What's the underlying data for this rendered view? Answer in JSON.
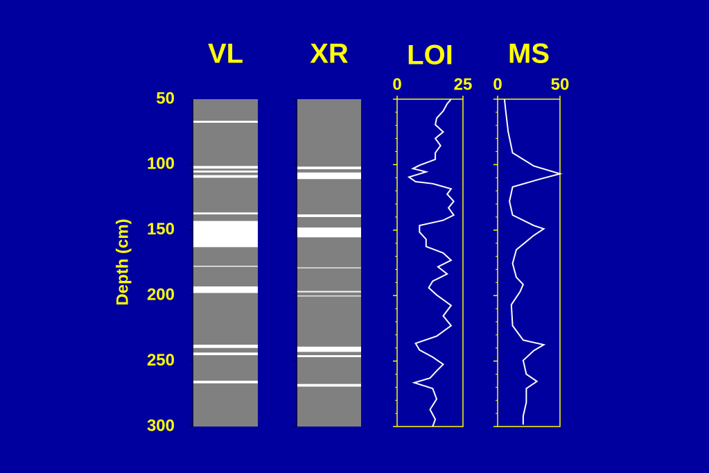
{
  "chart_data": [
    {
      "type": "strip",
      "title": "VL",
      "ylabel": "Depth (cm)",
      "ylim": [
        50,
        300
      ],
      "yticks": [
        50,
        100,
        150,
        200,
        250,
        300
      ],
      "yminorticks": [
        60,
        70,
        80,
        90,
        110,
        120,
        130,
        140,
        160,
        170,
        180,
        190,
        210,
        220,
        230,
        240,
        260,
        270,
        280,
        290
      ],
      "color": "#808080",
      "band_color": "#ffffff",
      "intervals": [
        [
          66.5,
          68
        ],
        [
          101,
          103
        ],
        [
          104.5,
          106
        ],
        [
          108,
          110
        ],
        [
          136.5,
          138
        ],
        [
          143,
          163
        ],
        [
          177.3,
          178
        ],
        [
          193,
          198
        ],
        [
          237.5,
          240
        ],
        [
          243.5,
          245.5
        ],
        [
          265,
          267
        ]
      ]
    },
    {
      "type": "strip",
      "title": "XR",
      "ylim": [
        50,
        300
      ],
      "color": "#808080",
      "band_color": "#ffffff",
      "intervals": [
        [
          101.5,
          103.5
        ],
        [
          106,
          111
        ],
        [
          138,
          140
        ],
        [
          148,
          155.5
        ],
        [
          178.5,
          179
        ],
        [
          196.5,
          197.5
        ],
        [
          200,
          200.5
        ],
        [
          239,
          243
        ],
        [
          245.5,
          247
        ],
        [
          267.5,
          269.5
        ]
      ]
    },
    {
      "type": "line",
      "title": "LOI",
      "xlim": [
        0,
        25
      ],
      "xticks": [
        0,
        25
      ],
      "ylim": [
        50,
        300
      ],
      "color": "#ffffff",
      "depth": [
        50,
        53.5,
        59,
        64.5,
        69.5,
        75,
        80,
        85.5,
        91,
        96,
        100.5,
        103,
        105.5,
        109.5,
        113,
        114.5,
        118.5,
        122.5,
        128,
        133,
        138.5,
        142.5,
        146.5,
        151.5,
        157,
        162.5,
        167.5,
        173,
        178,
        183.5,
        189,
        194,
        199.5,
        207.5,
        215.5,
        223,
        231,
        236.5,
        241.5,
        247,
        252.5,
        257.5,
        263,
        266.5,
        271,
        279,
        287,
        294.5,
        300
      ],
      "values": [
        20.5,
        19,
        17.5,
        15,
        14.5,
        17.5,
        14.5,
        16.5,
        14.5,
        14.5,
        8.5,
        6,
        11,
        4.5,
        7,
        13.5,
        20.5,
        19,
        21.5,
        19.5,
        21.5,
        17.5,
        8.5,
        8.5,
        11,
        11,
        17.5,
        20.5,
        15.5,
        19,
        13.5,
        12,
        15,
        20.5,
        17.5,
        20.5,
        15,
        7,
        8.5,
        13.5,
        17.5,
        15,
        12.5,
        6.5,
        13.5,
        15,
        12.5,
        14.5,
        13.5
      ]
    },
    {
      "type": "line",
      "title": "MS",
      "xlim": [
        0,
        50
      ],
      "xticks": [
        0,
        50
      ],
      "ylim": [
        50,
        300
      ],
      "color": "#ffffff",
      "depth": [
        50,
        59,
        75,
        91,
        101,
        107,
        111,
        117,
        128,
        138.5,
        146.5,
        149,
        154,
        165,
        175.5,
        186,
        191.5,
        197,
        207,
        223,
        234,
        237.5,
        242,
        249.5,
        260,
        265.5,
        271,
        281.5,
        292,
        298.5
      ],
      "values": [
        5.5,
        6.5,
        8.5,
        12,
        29,
        50,
        34,
        12,
        9.5,
        12,
        29,
        37,
        29,
        15,
        12,
        15,
        20.5,
        18,
        11,
        12,
        20.5,
        37,
        29,
        20.5,
        23,
        31.5,
        23,
        23,
        20.5,
        20.5
      ]
    }
  ]
}
